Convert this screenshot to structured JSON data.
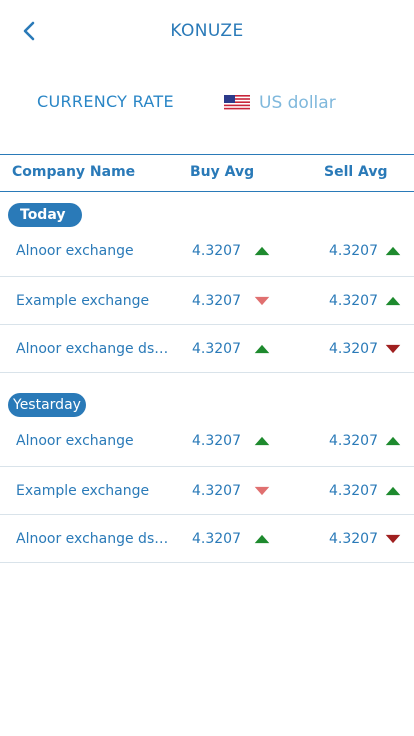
{
  "header": {
    "title": "KONUZE",
    "back_icon": "chevron-left-icon"
  },
  "currency": {
    "label": "CURRENCY RATE",
    "selected": "US dollar",
    "flag_icon": "us-flag-icon"
  },
  "table": {
    "columns": [
      "Company Name",
      "Buy Avg",
      "Sell Avg"
    ]
  },
  "colors": {
    "primary": "#2a7ab8",
    "up": "#1e8a2e",
    "down_light": "#e07070",
    "down_dark": "#a02020"
  },
  "sections": [
    {
      "label": "Today",
      "rows": [
        {
          "company": "Alnoor exchange",
          "buy": "4.3207",
          "buy_trend": "up",
          "sell": "4.3207",
          "sell_trend": "up"
        },
        {
          "company": "Example exchange",
          "buy": "4.3207",
          "buy_trend": "down",
          "sell": "4.3207",
          "sell_trend": "up"
        },
        {
          "company": "Alnoor exchange dsd...",
          "buy": "4.3207",
          "buy_trend": "up",
          "sell": "4.3207",
          "sell_trend": "down"
        }
      ]
    },
    {
      "label": "Yestarday",
      "rows": [
        {
          "company": "Alnoor exchange",
          "buy": "4.3207",
          "buy_trend": "up",
          "sell": "4.3207",
          "sell_trend": "up"
        },
        {
          "company": "Example exchange",
          "buy": "4.3207",
          "buy_trend": "down",
          "sell": "4.3207",
          "sell_trend": "up"
        },
        {
          "company": "Alnoor exchange dsd...",
          "buy": "4.3207",
          "buy_trend": "up",
          "sell": "4.3207",
          "sell_trend": "down"
        }
      ]
    }
  ]
}
